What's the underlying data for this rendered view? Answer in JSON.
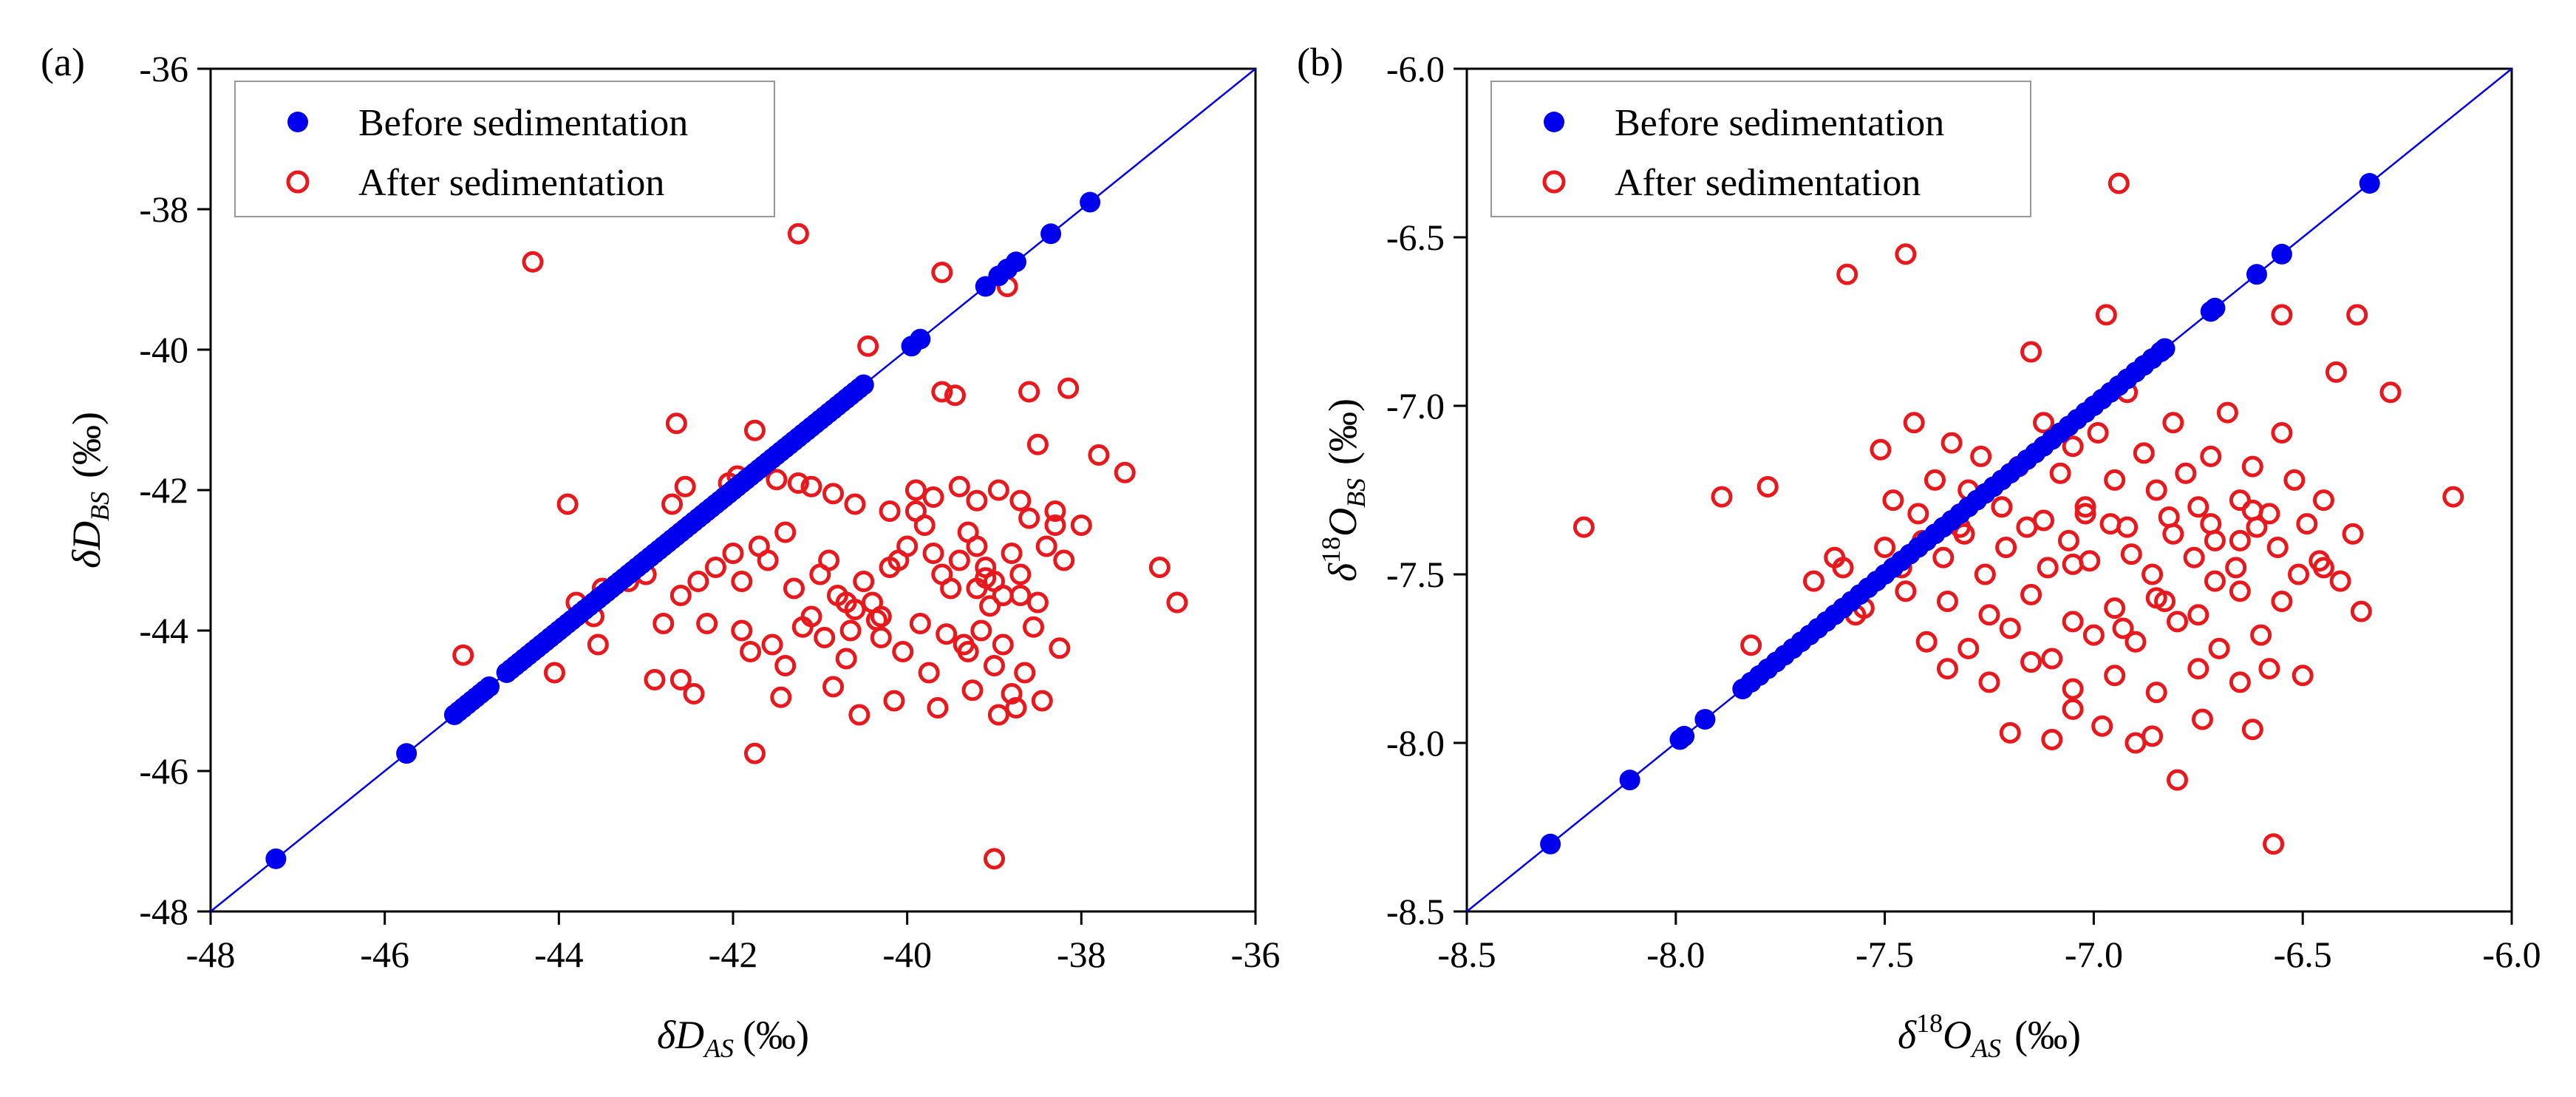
{
  "chart_data": [
    {
      "panel": "a",
      "panel_label": "(a)",
      "type": "scatter",
      "xlabel": "δD_AS (‰)",
      "xlabel_parts": {
        "symbol": "δD",
        "sup": "",
        "sub": "AS",
        "unit": "(‰)"
      },
      "ylabel": "δD_BS (‰)",
      "ylabel_parts": {
        "symbol": "δD",
        "sup": "",
        "sub": "BS",
        "unit": "(‰)"
      },
      "xlim": [
        -48,
        -36
      ],
      "ylim": [
        -48,
        -36
      ],
      "xticks": [
        -48,
        -46,
        -44,
        -42,
        -40,
        -38,
        -36
      ],
      "yticks": [
        -48,
        -46,
        -44,
        -42,
        -40,
        -38,
        -36
      ],
      "xtick_labels": [
        "-48",
        "-46",
        "-44",
        "-42",
        "-40",
        "-38",
        "-36"
      ],
      "ytick_labels": [
        "-48",
        "-46",
        "-44",
        "-42",
        "-40",
        "-38",
        "-36"
      ],
      "reference_line": "1:1",
      "legend_position": "top-left",
      "series": [
        {
          "name": "Before sedimentation",
          "marker": "filled-circle",
          "color": "#0000ee",
          "x": [
            -47.25,
            -45.75,
            -45.2,
            -45.15,
            -45.1,
            -45.05,
            -45.0,
            -44.95,
            -44.9,
            -44.85,
            -44.8,
            -44.6,
            -44.55,
            -44.5,
            -44.45,
            -44.4,
            -44.35,
            -44.3,
            -44.25,
            -44.2,
            -44.15,
            -44.1,
            -44.05,
            -44.0,
            -43.95,
            -43.9,
            -43.85,
            -43.8,
            -43.75,
            -43.7,
            -43.65,
            -43.6,
            -43.55,
            -43.5,
            -43.45,
            -43.4,
            -43.35,
            -43.3,
            -43.25,
            -43.2,
            -43.15,
            -43.1,
            -43.05,
            -43.0,
            -42.95,
            -42.9,
            -42.85,
            -42.8,
            -42.75,
            -42.7,
            -42.65,
            -42.6,
            -42.55,
            -42.5,
            -42.45,
            -42.4,
            -42.35,
            -42.3,
            -42.25,
            -42.2,
            -42.15,
            -42.1,
            -42.05,
            -42.0,
            -41.95,
            -41.9,
            -41.85,
            -41.8,
            -41.75,
            -41.7,
            -41.65,
            -41.6,
            -41.55,
            -41.5,
            -41.45,
            -41.4,
            -41.35,
            -41.3,
            -41.25,
            -41.2,
            -41.15,
            -41.1,
            -41.05,
            -41.0,
            -40.95,
            -40.9,
            -40.85,
            -40.8,
            -40.75,
            -40.7,
            -40.65,
            -40.6,
            -40.55,
            -40.5,
            -39.95,
            -39.85,
            -39.1,
            -38.95,
            -38.85,
            -38.75,
            -38.35,
            -37.9
          ],
          "y": [
            -47.25,
            -45.75,
            -45.2,
            -45.15,
            -45.1,
            -45.05,
            -45.0,
            -44.95,
            -44.9,
            -44.85,
            -44.8,
            -44.6,
            -44.55,
            -44.5,
            -44.45,
            -44.4,
            -44.35,
            -44.3,
            -44.25,
            -44.2,
            -44.15,
            -44.1,
            -44.05,
            -44.0,
            -43.95,
            -43.9,
            -43.85,
            -43.8,
            -43.75,
            -43.7,
            -43.65,
            -43.6,
            -43.55,
            -43.5,
            -43.45,
            -43.4,
            -43.35,
            -43.3,
            -43.25,
            -43.2,
            -43.15,
            -43.1,
            -43.05,
            -43.0,
            -42.95,
            -42.9,
            -42.85,
            -42.8,
            -42.75,
            -42.7,
            -42.65,
            -42.6,
            -42.55,
            -42.5,
            -42.45,
            -42.4,
            -42.35,
            -42.3,
            -42.25,
            -42.2,
            -42.15,
            -42.1,
            -42.05,
            -42.0,
            -41.95,
            -41.9,
            -41.85,
            -41.8,
            -41.75,
            -41.7,
            -41.65,
            -41.6,
            -41.55,
            -41.5,
            -41.45,
            -41.4,
            -41.35,
            -41.3,
            -41.25,
            -41.2,
            -41.15,
            -41.1,
            -41.05,
            -41.0,
            -40.95,
            -40.9,
            -40.85,
            -40.8,
            -40.75,
            -40.7,
            -40.65,
            -40.6,
            -40.55,
            -40.5,
            -39.95,
            -39.85,
            -39.1,
            -38.95,
            -38.85,
            -38.75,
            -38.35,
            -37.9
          ]
        },
        {
          "name": "After sedimentation",
          "marker": "open-circle",
          "color": "#e8181c",
          "x": [
            -44.3,
            -41.25,
            -39.6,
            -38.85,
            -42.65,
            -41.75,
            -40.45,
            -39.6,
            -39.45,
            -38.6,
            -38.15,
            -37.8,
            -37.5,
            -37.1,
            -36.9,
            -43.9,
            -42.7,
            -42.55,
            -42.05,
            -41.95,
            -41.5,
            -41.25,
            -41.1,
            -40.85,
            -40.6,
            -40.2,
            -39.9,
            -39.7,
            -39.4,
            -39.2,
            -38.95,
            -38.7,
            -38.5,
            -38.3,
            -38.0,
            -43.8,
            -43.6,
            -43.5,
            -43.2,
            -43.0,
            -42.8,
            -42.6,
            -42.4,
            -42.2,
            -42.0,
            -41.9,
            -41.7,
            -41.6,
            -41.4,
            -41.3,
            -41.1,
            -41.0,
            -40.9,
            -40.8,
            -40.7,
            -40.6,
            -40.5,
            -40.4,
            -40.3,
            -40.2,
            -40.1,
            -40.0,
            -39.9,
            -39.8,
            -39.7,
            -39.6,
            -39.5,
            -39.4,
            -39.3,
            -39.2,
            -39.1,
            -39.0,
            -38.9,
            -38.8,
            -38.7,
            -38.6,
            -38.5,
            -38.4,
            -38.3,
            -38.2,
            -45.1,
            -44.05,
            -43.55,
            -42.6,
            -41.8,
            -41.4,
            -40.7,
            -40.3,
            -39.75,
            -39.3,
            -39.0,
            -38.8,
            -38.65,
            -42.3,
            -41.9,
            -41.55,
            -41.2,
            -40.95,
            -40.65,
            -40.35,
            -40.05,
            -39.85,
            -39.55,
            -39.35,
            -39.15,
            -38.9,
            -38.55,
            -38.25,
            -42.9,
            -42.45,
            -41.75,
            -41.45,
            -40.85,
            -40.55,
            -40.15,
            -39.65,
            -39.25,
            -38.95,
            -38.75,
            -38.45,
            -39.0,
            -39.05,
            -38.9,
            -39.2,
            -39.1,
            -38.7
          ],
          "y": [
            -38.75,
            -38.35,
            -38.9,
            -39.1,
            -41.05,
            -41.15,
            -39.95,
            -40.6,
            -40.65,
            -40.6,
            -40.55,
            -41.5,
            -41.75,
            -43.1,
            -43.6,
            -42.2,
            -42.2,
            -41.95,
            -41.9,
            -41.8,
            -41.85,
            -41.9,
            -41.95,
            -42.05,
            -42.2,
            -42.3,
            -42.0,
            -42.1,
            -41.95,
            -42.15,
            -42.0,
            -42.15,
            -41.35,
            -42.3,
            -42.5,
            -43.6,
            -43.8,
            -43.4,
            -43.3,
            -43.2,
            -43.9,
            -43.5,
            -43.3,
            -43.1,
            -42.9,
            -43.3,
            -42.8,
            -43.0,
            -42.6,
            -43.4,
            -43.8,
            -43.2,
            -43.0,
            -43.5,
            -43.6,
            -43.7,
            -43.3,
            -43.6,
            -43.8,
            -43.1,
            -43.0,
            -42.8,
            -42.3,
            -42.5,
            -42.9,
            -43.2,
            -43.4,
            -43.0,
            -42.6,
            -42.8,
            -43.1,
            -43.3,
            -43.5,
            -42.9,
            -43.2,
            -42.4,
            -43.6,
            -42.8,
            -42.5,
            -43.0,
            -44.35,
            -44.6,
            -44.2,
            -44.7,
            -44.3,
            -44.5,
            -44.4,
            -44.1,
            -44.6,
            -44.3,
            -44.5,
            -44.9,
            -44.6,
            -43.9,
            -44.0,
            -44.2,
            -43.95,
            -44.1,
            -44.0,
            -43.85,
            -44.3,
            -43.9,
            -44.05,
            -44.2,
            -44.0,
            -44.2,
            -43.95,
            -44.25,
            -44.7,
            -44.9,
            -45.75,
            -44.95,
            -44.8,
            -45.2,
            -45.0,
            -45.1,
            -44.85,
            -45.2,
            -45.1,
            -45.0,
            -47.25,
            -43.65,
            -43.5,
            -43.4,
            -43.25,
            -43.5
          ]
        }
      ]
    },
    {
      "panel": "b",
      "panel_label": "(b)",
      "type": "scatter",
      "xlabel": "δ18O_AS (‰)",
      "xlabel_parts": {
        "symbol": "δ",
        "sup": "18",
        "base": "O",
        "sub": "AS",
        "unit": "(‰)"
      },
      "ylabel": "δ18O_BS (‰)",
      "ylabel_parts": {
        "symbol": "δ",
        "sup": "18",
        "base": "O",
        "sub": "BS",
        "unit": "(‰)"
      },
      "xlim": [
        -8.5,
        -6.0
      ],
      "ylim": [
        -8.5,
        -6.0
      ],
      "xticks": [
        -8.5,
        -8.0,
        -7.5,
        -7.0,
        -6.5,
        -6.0
      ],
      "yticks": [
        -8.5,
        -8.0,
        -7.5,
        -7.0,
        -6.5,
        -6.0
      ],
      "xtick_labels": [
        "-8.5",
        "-8.0",
        "-7.5",
        "-7.0",
        "-6.5",
        "-6.0"
      ],
      "ytick_labels": [
        "-8.5",
        "-8.0",
        "-7.5",
        "-7.0",
        "-6.5",
        "-6.0"
      ],
      "reference_line": "1:1",
      "legend_position": "top-left",
      "series": [
        {
          "name": "Before sedimentation",
          "marker": "filled-circle",
          "color": "#0000ee",
          "x": [
            -8.3,
            -8.11,
            -7.99,
            -7.98,
            -7.93,
            -7.84,
            -7.82,
            -7.8,
            -7.78,
            -7.76,
            -7.74,
            -7.72,
            -7.7,
            -7.68,
            -7.66,
            -7.64,
            -7.62,
            -7.6,
            -7.58,
            -7.56,
            -7.54,
            -7.52,
            -7.5,
            -7.48,
            -7.46,
            -7.44,
            -7.42,
            -7.4,
            -7.38,
            -7.36,
            -7.34,
            -7.32,
            -7.3,
            -7.28,
            -7.26,
            -7.24,
            -7.22,
            -7.2,
            -7.18,
            -7.16,
            -7.14,
            -7.12,
            -7.1,
            -7.08,
            -7.06,
            -7.04,
            -7.02,
            -7.0,
            -6.98,
            -6.96,
            -6.94,
            -6.92,
            -6.9,
            -6.88,
            -6.86,
            -6.84,
            -6.83,
            -6.72,
            -6.71,
            -6.61,
            -6.55,
            -6.34
          ],
          "y": [
            -8.3,
            -8.11,
            -7.99,
            -7.98,
            -7.93,
            -7.84,
            -7.82,
            -7.8,
            -7.78,
            -7.76,
            -7.74,
            -7.72,
            -7.7,
            -7.68,
            -7.66,
            -7.64,
            -7.62,
            -7.6,
            -7.58,
            -7.56,
            -7.54,
            -7.52,
            -7.5,
            -7.48,
            -7.46,
            -7.44,
            -7.42,
            -7.4,
            -7.38,
            -7.36,
            -7.34,
            -7.32,
            -7.3,
            -7.28,
            -7.26,
            -7.24,
            -7.22,
            -7.2,
            -7.18,
            -7.16,
            -7.14,
            -7.12,
            -7.1,
            -7.08,
            -7.06,
            -7.04,
            -7.02,
            -7.0,
            -6.98,
            -6.96,
            -6.94,
            -6.92,
            -6.9,
            -6.88,
            -6.86,
            -6.84,
            -6.83,
            -6.72,
            -6.71,
            -6.61,
            -6.55,
            -6.34
          ]
        },
        {
          "name": "After sedimentation",
          "marker": "open-circle",
          "color": "#e8181c",
          "x": [
            -8.22,
            -7.89,
            -7.78,
            -7.82,
            -7.59,
            -7.45,
            -6.94,
            -6.97,
            -6.55,
            -6.37,
            -6.29,
            -6.14,
            -7.51,
            -7.48,
            -7.43,
            -7.38,
            -7.34,
            -7.3,
            -7.27,
            -7.22,
            -7.18,
            -7.15,
            -7.12,
            -7.08,
            -7.05,
            -7.02,
            -6.99,
            -6.95,
            -6.92,
            -6.88,
            -6.85,
            -6.81,
            -6.78,
            -6.75,
            -6.72,
            -6.68,
            -6.65,
            -6.62,
            -6.58,
            -6.55,
            -6.52,
            -6.49,
            -6.45,
            -6.42,
            -6.38,
            -7.5,
            -7.46,
            -7.41,
            -7.36,
            -7.31,
            -7.26,
            -7.21,
            -7.16,
            -7.11,
            -7.06,
            -7.01,
            -6.96,
            -6.91,
            -6.86,
            -6.81,
            -6.76,
            -6.71,
            -6.66,
            -6.61,
            -6.56,
            -6.51,
            -6.46,
            -6.41,
            -7.55,
            -7.45,
            -7.35,
            -7.25,
            -7.15,
            -7.05,
            -6.95,
            -6.85,
            -6.75,
            -6.65,
            -6.55,
            -6.45,
            -7.4,
            -7.3,
            -7.2,
            -7.1,
            -7.0,
            -6.9,
            -6.8,
            -6.7,
            -6.6,
            -6.5,
            -7.35,
            -7.25,
            -7.15,
            -7.05,
            -6.95,
            -6.85,
            -6.75,
            -6.65,
            -7.42,
            -7.32,
            -7.22,
            -7.12,
            -7.02,
            -6.92,
            -6.82,
            -6.72,
            -6.62,
            -7.1,
            -6.98,
            -6.86,
            -6.74,
            -6.62,
            -7.2,
            -7.05,
            -6.9,
            -6.8,
            -6.58,
            -6.93,
            -6.83,
            -6.71,
            -6.57,
            -6.36,
            -7.67,
            -7.62,
            -7.57,
            -7.6,
            -7.05,
            -6.65
          ],
          "y": [
            -7.36,
            -7.27,
            -7.24,
            -7.71,
            -6.61,
            -6.55,
            -6.34,
            -6.73,
            -6.73,
            -6.73,
            -6.96,
            -7.27,
            -7.13,
            -7.28,
            -7.05,
            -7.22,
            -7.11,
            -7.25,
            -7.15,
            -7.3,
            -7.18,
            -6.84,
            -7.05,
            -7.2,
            -7.12,
            -7.3,
            -7.08,
            -7.22,
            -6.96,
            -7.14,
            -7.25,
            -7.05,
            -7.2,
            -7.3,
            -7.15,
            -7.02,
            -7.28,
            -7.18,
            -7.32,
            -7.08,
            -7.22,
            -7.35,
            -7.28,
            -6.9,
            -7.38,
            -7.42,
            -7.48,
            -7.4,
            -7.45,
            -7.38,
            -7.5,
            -7.42,
            -7.36,
            -7.48,
            -7.4,
            -7.46,
            -7.35,
            -7.44,
            -7.5,
            -7.38,
            -7.45,
            -7.4,
            -7.48,
            -7.36,
            -7.42,
            -7.5,
            -7.46,
            -7.52,
            -7.6,
            -7.55,
            -7.58,
            -7.62,
            -7.56,
            -7.64,
            -7.6,
            -7.57,
            -7.62,
            -7.55,
            -7.58,
            -7.48,
            -7.7,
            -7.72,
            -7.66,
            -7.75,
            -7.68,
            -7.7,
            -7.64,
            -7.72,
            -7.68,
            -7.8,
            -7.78,
            -7.82,
            -7.76,
            -7.84,
            -7.8,
            -7.85,
            -7.78,
            -7.82,
            -7.32,
            -7.36,
            -7.3,
            -7.34,
            -7.32,
            -7.36,
            -7.33,
            -7.35,
            -7.31,
            -7.99,
            -7.95,
            -7.98,
            -7.93,
            -7.96,
            -7.97,
            -7.9,
            -8.0,
            -8.11,
            -7.78,
            -7.66,
            -7.58,
            -7.52,
            -8.3,
            -7.61,
            -7.52,
            -7.45,
            -7.62,
            -7.48,
            -7.47,
            -7.4
          ]
        }
      ]
    }
  ]
}
